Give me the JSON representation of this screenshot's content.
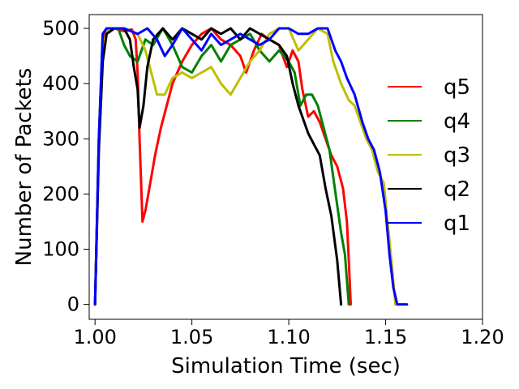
{
  "chart_data": {
    "type": "line",
    "title": "",
    "xlabel": "Simulation Time (sec)",
    "ylabel": "Number of Packets",
    "xlim": [
      0.997,
      1.2
    ],
    "ylim": [
      -27,
      525
    ],
    "xticks": [
      1.0,
      1.05,
      1.1,
      1.15,
      1.2
    ],
    "xtick_labels": [
      "1.00",
      "1.05",
      "1.10",
      "1.15",
      "1.20"
    ],
    "yticks": [
      0,
      100,
      200,
      300,
      400,
      500
    ],
    "ytick_labels": [
      "0",
      "100",
      "200",
      "300",
      "400",
      "500"
    ],
    "grid": false,
    "legend": "center-right",
    "series": [
      {
        "name": "q5",
        "color": "#ff0000",
        "points": [
          [
            1.0,
            0
          ],
          [
            1.002,
            300
          ],
          [
            1.004,
            480
          ],
          [
            1.006,
            500
          ],
          [
            1.01,
            500
          ],
          [
            1.015,
            495
          ],
          [
            1.019,
            498
          ],
          [
            1.021,
            480
          ],
          [
            1.022,
            420
          ],
          [
            1.023,
            300
          ],
          [
            1.0245,
            150
          ],
          [
            1.026,
            170
          ],
          [
            1.028,
            210
          ],
          [
            1.031,
            270
          ],
          [
            1.034,
            320
          ],
          [
            1.037,
            360
          ],
          [
            1.04,
            400
          ],
          [
            1.045,
            440
          ],
          [
            1.05,
            470
          ],
          [
            1.055,
            490
          ],
          [
            1.06,
            500
          ],
          [
            1.065,
            480
          ],
          [
            1.07,
            470
          ],
          [
            1.075,
            450
          ],
          [
            1.078,
            420
          ],
          [
            1.082,
            460
          ],
          [
            1.086,
            490
          ],
          [
            1.09,
            480
          ],
          [
            1.095,
            470
          ],
          [
            1.099,
            430
          ],
          [
            1.102,
            460
          ],
          [
            1.105,
            440
          ],
          [
            1.107,
            390
          ],
          [
            1.11,
            340
          ],
          [
            1.113,
            350
          ],
          [
            1.116,
            330
          ],
          [
            1.119,
            300
          ],
          [
            1.122,
            270
          ],
          [
            1.125,
            250
          ],
          [
            1.128,
            210
          ],
          [
            1.13,
            150
          ],
          [
            1.131,
            80
          ],
          [
            1.132,
            0
          ]
        ]
      },
      {
        "name": "q4",
        "color": "#008000",
        "points": [
          [
            1.0,
            0
          ],
          [
            1.002,
            300
          ],
          [
            1.004,
            490
          ],
          [
            1.006,
            500
          ],
          [
            1.012,
            500
          ],
          [
            1.015,
            470
          ],
          [
            1.018,
            450
          ],
          [
            1.022,
            440
          ],
          [
            1.026,
            480
          ],
          [
            1.03,
            470
          ],
          [
            1.035,
            500
          ],
          [
            1.04,
            470
          ],
          [
            1.045,
            430
          ],
          [
            1.05,
            420
          ],
          [
            1.055,
            450
          ],
          [
            1.06,
            470
          ],
          [
            1.065,
            440
          ],
          [
            1.07,
            470
          ],
          [
            1.075,
            480
          ],
          [
            1.08,
            490
          ],
          [
            1.085,
            460
          ],
          [
            1.09,
            440
          ],
          [
            1.095,
            460
          ],
          [
            1.1,
            440
          ],
          [
            1.103,
            420
          ],
          [
            1.106,
            360
          ],
          [
            1.109,
            380
          ],
          [
            1.112,
            380
          ],
          [
            1.115,
            360
          ],
          [
            1.118,
            320
          ],
          [
            1.121,
            280
          ],
          [
            1.123,
            230
          ],
          [
            1.125,
            180
          ],
          [
            1.127,
            130
          ],
          [
            1.129,
            90
          ],
          [
            1.131,
            0
          ]
        ]
      },
      {
        "name": "q3",
        "color": "#bfbf00",
        "points": [
          [
            1.0,
            0
          ],
          [
            1.002,
            280
          ],
          [
            1.004,
            470
          ],
          [
            1.007,
            500
          ],
          [
            1.015,
            500
          ],
          [
            1.022,
            490
          ],
          [
            1.026,
            460
          ],
          [
            1.029,
            420
          ],
          [
            1.032,
            380
          ],
          [
            1.036,
            380
          ],
          [
            1.04,
            410
          ],
          [
            1.045,
            420
          ],
          [
            1.05,
            410
          ],
          [
            1.055,
            420
          ],
          [
            1.06,
            430
          ],
          [
            1.065,
            400
          ],
          [
            1.07,
            380
          ],
          [
            1.075,
            410
          ],
          [
            1.08,
            440
          ],
          [
            1.085,
            460
          ],
          [
            1.09,
            490
          ],
          [
            1.095,
            500
          ],
          [
            1.1,
            500
          ],
          [
            1.105,
            460
          ],
          [
            1.11,
            480
          ],
          [
            1.115,
            500
          ],
          [
            1.12,
            490
          ],
          [
            1.123,
            440
          ],
          [
            1.127,
            400
          ],
          [
            1.131,
            370
          ],
          [
            1.134,
            360
          ],
          [
            1.137,
            330
          ],
          [
            1.14,
            300
          ],
          [
            1.143,
            280
          ],
          [
            1.146,
            240
          ],
          [
            1.149,
            220
          ],
          [
            1.151,
            150
          ],
          [
            1.153,
            80
          ],
          [
            1.155,
            0
          ]
        ]
      },
      {
        "name": "q2",
        "color": "#000000",
        "points": [
          [
            1.0,
            0
          ],
          [
            1.002,
            280
          ],
          [
            1.004,
            440
          ],
          [
            1.006,
            490
          ],
          [
            1.01,
            500
          ],
          [
            1.015,
            500
          ],
          [
            1.018,
            480
          ],
          [
            1.02,
            430
          ],
          [
            1.022,
            390
          ],
          [
            1.023,
            320
          ],
          [
            1.025,
            360
          ],
          [
            1.027,
            430
          ],
          [
            1.03,
            480
          ],
          [
            1.035,
            500
          ],
          [
            1.04,
            480
          ],
          [
            1.045,
            500
          ],
          [
            1.05,
            490
          ],
          [
            1.055,
            480
          ],
          [
            1.06,
            500
          ],
          [
            1.065,
            490
          ],
          [
            1.07,
            500
          ],
          [
            1.075,
            480
          ],
          [
            1.08,
            500
          ],
          [
            1.085,
            490
          ],
          [
            1.09,
            480
          ],
          [
            1.095,
            470
          ],
          [
            1.099,
            450
          ],
          [
            1.102,
            400
          ],
          [
            1.105,
            360
          ],
          [
            1.108,
            330
          ],
          [
            1.11,
            310
          ],
          [
            1.113,
            290
          ],
          [
            1.116,
            270
          ],
          [
            1.119,
            210
          ],
          [
            1.122,
            160
          ],
          [
            1.125,
            80
          ],
          [
            1.127,
            0
          ]
        ]
      },
      {
        "name": "q1",
        "color": "#0000ff",
        "points": [
          [
            1.0,
            0
          ],
          [
            1.002,
            300
          ],
          [
            1.004,
            490
          ],
          [
            1.006,
            500
          ],
          [
            1.015,
            500
          ],
          [
            1.022,
            490
          ],
          [
            1.027,
            500
          ],
          [
            1.032,
            480
          ],
          [
            1.036,
            450
          ],
          [
            1.04,
            470
          ],
          [
            1.045,
            500
          ],
          [
            1.05,
            480
          ],
          [
            1.055,
            460
          ],
          [
            1.06,
            490
          ],
          [
            1.065,
            470
          ],
          [
            1.07,
            480
          ],
          [
            1.075,
            490
          ],
          [
            1.08,
            480
          ],
          [
            1.085,
            470
          ],
          [
            1.09,
            480
          ],
          [
            1.095,
            500
          ],
          [
            1.1,
            500
          ],
          [
            1.105,
            490
          ],
          [
            1.11,
            490
          ],
          [
            1.115,
            500
          ],
          [
            1.12,
            500
          ],
          [
            1.124,
            460
          ],
          [
            1.127,
            440
          ],
          [
            1.13,
            410
          ],
          [
            1.134,
            380
          ],
          [
            1.138,
            330
          ],
          [
            1.141,
            300
          ],
          [
            1.144,
            280
          ],
          [
            1.147,
            240
          ],
          [
            1.15,
            170
          ],
          [
            1.152,
            90
          ],
          [
            1.154,
            30
          ],
          [
            1.156,
            0
          ],
          [
            1.161,
            0
          ]
        ]
      }
    ]
  }
}
